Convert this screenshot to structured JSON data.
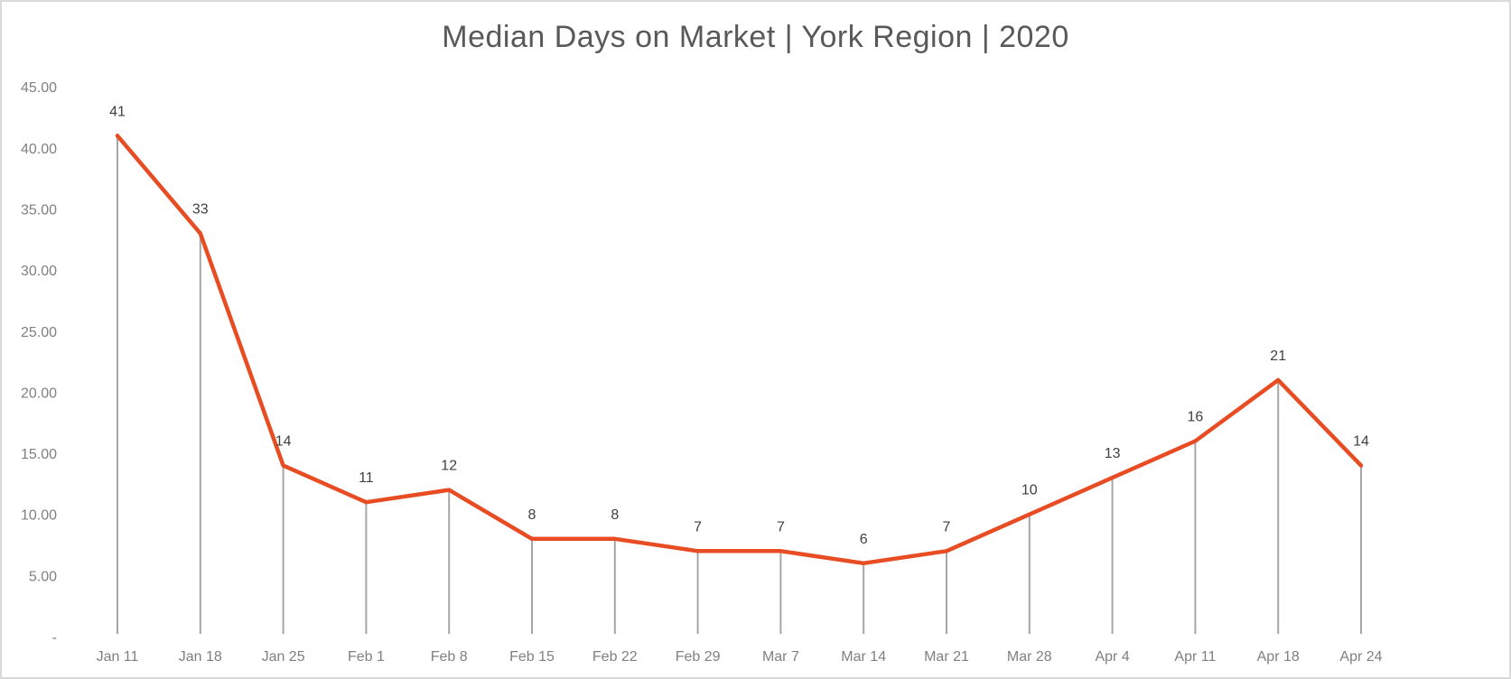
{
  "chart_data": {
    "type": "line",
    "title": "Median Days on Market | York Region | 2020",
    "xlabel": "",
    "ylabel": "",
    "categories": [
      "Jan 11",
      "Jan 18",
      "Jan 25",
      "Feb 1",
      "Feb 8",
      "Feb 15",
      "Feb 22",
      "Feb 29",
      "Mar 7",
      "Mar 14",
      "Mar 21",
      "Mar 28",
      "Apr 4",
      "Apr 11",
      "Apr 18",
      "Apr 24"
    ],
    "series": [
      {
        "name": "Median Days on Market",
        "values": [
          41,
          33,
          14,
          11,
          12,
          8,
          8,
          7,
          7,
          6,
          7,
          10,
          13,
          16,
          21,
          14
        ],
        "color": "#E84C22"
      }
    ],
    "ylim": [
      0,
      45
    ],
    "yticks": [
      0,
      5,
      10,
      15,
      20,
      25,
      30,
      35,
      40,
      45
    ],
    "ytick_labels": [
      "-",
      "5.00",
      "10.00",
      "15.00",
      "20.00",
      "25.00",
      "30.00",
      "35.00",
      "40.00",
      "45.00"
    ],
    "data_labels": [
      "41",
      "33",
      "14",
      "11",
      "12",
      "8",
      "8",
      "7",
      "7",
      "6",
      "7",
      "10",
      "13",
      "16",
      "21",
      "14"
    ],
    "drop_lines": true,
    "drop_line_color": "#A6A6A6",
    "grid": false,
    "legend": "none"
  }
}
